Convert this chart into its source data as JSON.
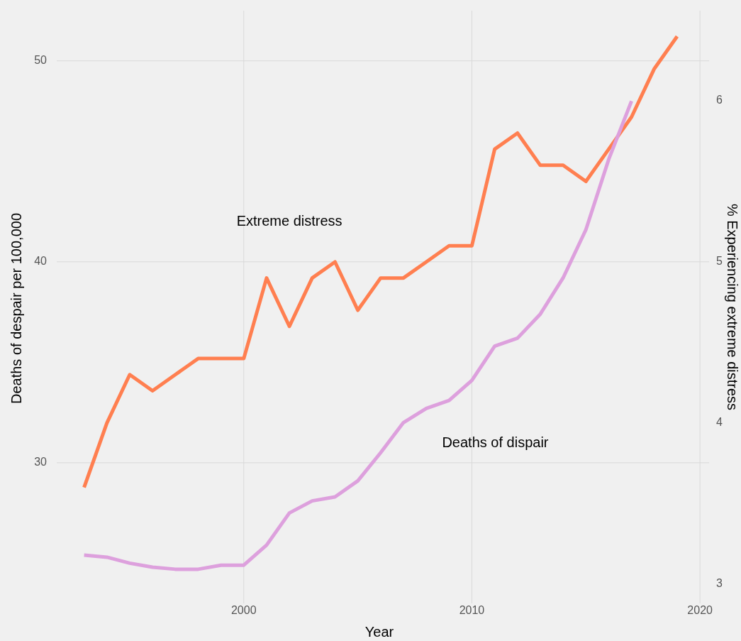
{
  "chart_data": {
    "type": "line",
    "xlabel": "Year",
    "ylabel": "Deaths of despair per 100,000",
    "y2label": "% Experiencing extreme distress",
    "x": [
      1993,
      1994,
      1995,
      1996,
      1997,
      1998,
      1999,
      2000,
      2001,
      2002,
      2003,
      2004,
      2005,
      2006,
      2007,
      2008,
      2009,
      2010,
      2011,
      2012,
      2013,
      2014,
      2015,
      2016,
      2017,
      2018,
      2019
    ],
    "xlim": [
      1991.8,
      2020.4
    ],
    "xticks": [
      2000,
      2010,
      2020
    ],
    "ylim": [
      23.0,
      52.5
    ],
    "yticks": [
      30,
      40,
      50
    ],
    "y2lim": [
      2.88,
      6.56
    ],
    "y2ticks": [
      3,
      4,
      5,
      6
    ],
    "grid": true,
    "legend": false,
    "line_style": "solid",
    "marker": "none",
    "series": [
      {
        "name": "Extreme distress",
        "color": "#ff7f50",
        "axis": "y2",
        "values": [
          3.6,
          4.0,
          4.3,
          4.2,
          4.3,
          4.4,
          4.4,
          4.4,
          4.9,
          4.6,
          4.9,
          5.0,
          4.7,
          4.9,
          4.9,
          5.0,
          5.1,
          5.1,
          5.7,
          5.8,
          5.6,
          5.6,
          5.5,
          5.7,
          5.9,
          6.2,
          6.4
        ]
      },
      {
        "name": "Deaths of dispair",
        "color": "#dda0dd",
        "values": [
          25.4,
          25.3,
          25.0,
          24.8,
          24.7,
          24.7,
          24.9,
          24.9,
          25.9,
          27.5,
          28.1,
          28.3,
          29.1,
          30.5,
          32.0,
          32.7,
          33.1,
          34.1,
          35.8,
          36.2,
          37.4,
          39.2,
          41.6,
          45.1,
          48.0,
          null,
          null
        ]
      }
    ]
  }
}
